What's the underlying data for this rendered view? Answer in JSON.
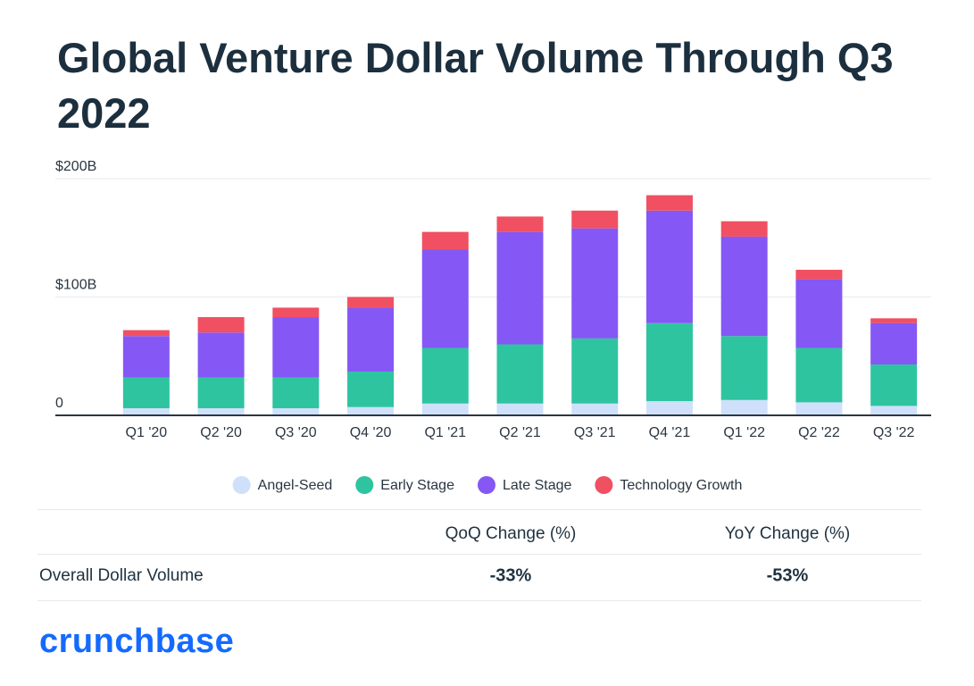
{
  "chart_data": {
    "type": "stacked-bar",
    "title": "Global Venture Dollar Volume Through Q3 2022",
    "categories": [
      "Q1 '20",
      "Q2 '20",
      "Q3 '20",
      "Q4 '20",
      "Q1 '21",
      "Q2 '21",
      "Q3 '21",
      "Q4 '21",
      "Q1 '22",
      "Q2 '22",
      "Q3 '22"
    ],
    "series": [
      {
        "name": "Angel-Seed",
        "color": "#cfe0fb",
        "values": [
          6,
          6,
          6,
          7,
          10,
          10,
          10,
          12,
          13,
          11,
          8
        ]
      },
      {
        "name": "Early Stage",
        "color": "#2ec4a0",
        "values": [
          26,
          26,
          26,
          30,
          47,
          50,
          55,
          66,
          54,
          46,
          35
        ]
      },
      {
        "name": "Late Stage",
        "color": "#8557f5",
        "values": [
          35,
          38,
          51,
          54,
          83,
          95,
          93,
          95,
          84,
          58,
          35
        ]
      },
      {
        "name": "Technology Growth",
        "color": "#f05062",
        "values": [
          5,
          13,
          8,
          9,
          15,
          13,
          15,
          13,
          13,
          8,
          4
        ]
      }
    ],
    "ylim": [
      0,
      200
    ],
    "yticks": [
      0,
      {
        "value": 100,
        "label": "$100B"
      },
      {
        "value": 200,
        "label": "$200B"
      }
    ],
    "grid": true,
    "legend": "bottom"
  },
  "table": {
    "header": [
      "QoQ Change (%)",
      "YoY Change (%)"
    ],
    "rows": [
      [
        "Overall Dollar Volume",
        "-33%",
        "-53%"
      ]
    ]
  },
  "logo": "crunchbase"
}
